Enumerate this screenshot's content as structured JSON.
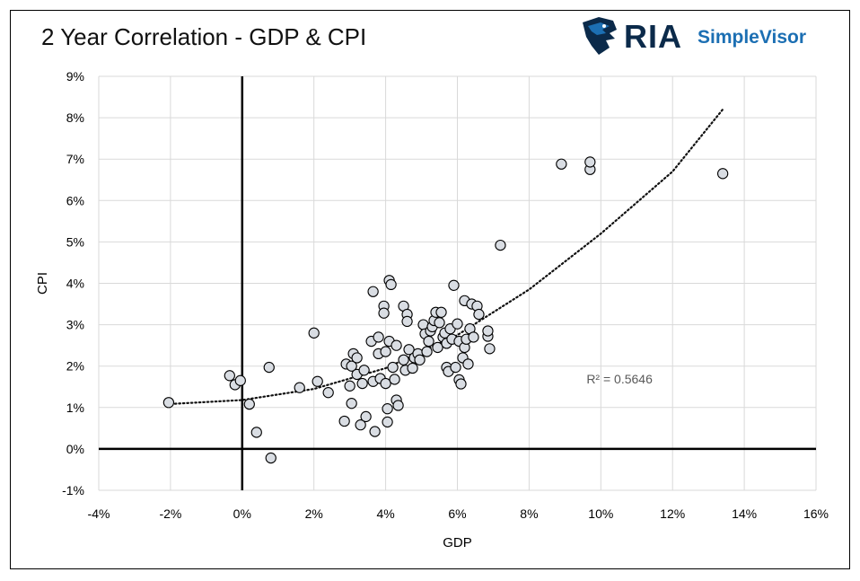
{
  "header": {
    "title": "2 Year Correlation - GDP & CPI",
    "logo_main": "RIA",
    "logo_sub": "SimpleVisor"
  },
  "colors": {
    "brand_dark": "#0b2a4a",
    "brand_blue": "#1c6fb3",
    "marker_fill": "#d9dde3",
    "marker_stroke": "#000000",
    "grid": "#d9d9d9"
  },
  "chart_data": {
    "type": "scatter",
    "title": "2 Year Correlation - GDP & CPI",
    "xlabel": "GDP",
    "ylabel": "CPI",
    "xlim": [
      -4,
      16
    ],
    "ylim": [
      -1,
      9
    ],
    "grid": true,
    "x_ticks": [
      "-4%",
      "-2%",
      "0%",
      "2%",
      "4%",
      "6%",
      "8%",
      "10%",
      "12%",
      "14%",
      "16%"
    ],
    "y_ticks": [
      "-1%",
      "0%",
      "1%",
      "2%",
      "3%",
      "4%",
      "5%",
      "6%",
      "7%",
      "8%",
      "9%"
    ],
    "trendline": {
      "style": "dotted",
      "fit": "polynomial",
      "label": "R² = 0.5646",
      "points": [
        [
          -2.1,
          1.08
        ],
        [
          0,
          1.18
        ],
        [
          2,
          1.45
        ],
        [
          4,
          1.95
        ],
        [
          6,
          2.75
        ],
        [
          8,
          3.85
        ],
        [
          10,
          5.2
        ],
        [
          12,
          6.7
        ],
        [
          13.4,
          8.2
        ]
      ]
    },
    "points": [
      [
        -2.05,
        1.12
      ],
      [
        -0.35,
        1.77
      ],
      [
        -0.2,
        1.55
      ],
      [
        -0.05,
        1.65
      ],
      [
        0.2,
        1.08
      ],
      [
        0.4,
        0.4
      ],
      [
        0.75,
        1.97
      ],
      [
        0.8,
        -0.22
      ],
      [
        1.6,
        1.48
      ],
      [
        2.0,
        2.8
      ],
      [
        2.1,
        1.63
      ],
      [
        2.4,
        1.36
      ],
      [
        2.85,
        0.67
      ],
      [
        2.9,
        2.05
      ],
      [
        3.0,
        1.52
      ],
      [
        3.05,
        2.0
      ],
      [
        3.05,
        1.1
      ],
      [
        3.1,
        2.3
      ],
      [
        3.2,
        2.2
      ],
      [
        3.2,
        1.8
      ],
      [
        3.3,
        0.58
      ],
      [
        3.35,
        1.58
      ],
      [
        3.4,
        1.9
      ],
      [
        3.45,
        0.78
      ],
      [
        3.6,
        2.6
      ],
      [
        3.65,
        3.8
      ],
      [
        3.65,
        1.63
      ],
      [
        3.7,
        0.42
      ],
      [
        3.8,
        2.3
      ],
      [
        3.8,
        2.7
      ],
      [
        3.85,
        1.7
      ],
      [
        3.95,
        3.45
      ],
      [
        3.95,
        3.28
      ],
      [
        4.0,
        2.35
      ],
      [
        4.0,
        1.58
      ],
      [
        4.05,
        0.97
      ],
      [
        4.05,
        0.65
      ],
      [
        4.1,
        2.6
      ],
      [
        4.1,
        4.07
      ],
      [
        4.15,
        3.97
      ],
      [
        4.2,
        1.97
      ],
      [
        4.25,
        1.68
      ],
      [
        4.3,
        2.5
      ],
      [
        4.3,
        1.18
      ],
      [
        4.35,
        1.05
      ],
      [
        4.5,
        3.45
      ],
      [
        4.5,
        2.15
      ],
      [
        4.55,
        1.9
      ],
      [
        4.6,
        3.25
      ],
      [
        4.6,
        3.08
      ],
      [
        4.65,
        2.4
      ],
      [
        4.75,
        1.95
      ],
      [
        4.8,
        2.2
      ],
      [
        4.9,
        2.3
      ],
      [
        4.95,
        2.15
      ],
      [
        5.05,
        3.0
      ],
      [
        5.1,
        2.78
      ],
      [
        5.15,
        2.35
      ],
      [
        5.2,
        2.6
      ],
      [
        5.25,
        2.85
      ],
      [
        5.3,
        2.95
      ],
      [
        5.35,
        3.1
      ],
      [
        5.4,
        3.3
      ],
      [
        5.45,
        2.45
      ],
      [
        5.5,
        3.05
      ],
      [
        5.55,
        3.3
      ],
      [
        5.6,
        2.7
      ],
      [
        5.65,
        2.8
      ],
      [
        5.7,
        2.55
      ],
      [
        5.7,
        1.97
      ],
      [
        5.75,
        1.87
      ],
      [
        5.8,
        2.9
      ],
      [
        5.85,
        2.65
      ],
      [
        5.9,
        3.95
      ],
      [
        5.95,
        1.97
      ],
      [
        6.0,
        3.02
      ],
      [
        6.05,
        2.6
      ],
      [
        6.05,
        1.67
      ],
      [
        6.1,
        1.57
      ],
      [
        6.15,
        2.2
      ],
      [
        6.2,
        2.45
      ],
      [
        6.2,
        3.58
      ],
      [
        6.25,
        2.65
      ],
      [
        6.3,
        2.05
      ],
      [
        6.35,
        2.9
      ],
      [
        6.4,
        3.5
      ],
      [
        6.45,
        2.7
      ],
      [
        6.55,
        3.45
      ],
      [
        6.6,
        3.25
      ],
      [
        6.85,
        2.72
      ],
      [
        6.85,
        2.85
      ],
      [
        6.9,
        2.42
      ],
      [
        7.2,
        4.92
      ],
      [
        8.9,
        6.88
      ],
      [
        9.7,
        6.75
      ],
      [
        9.7,
        6.93
      ],
      [
        13.4,
        6.65
      ]
    ]
  }
}
